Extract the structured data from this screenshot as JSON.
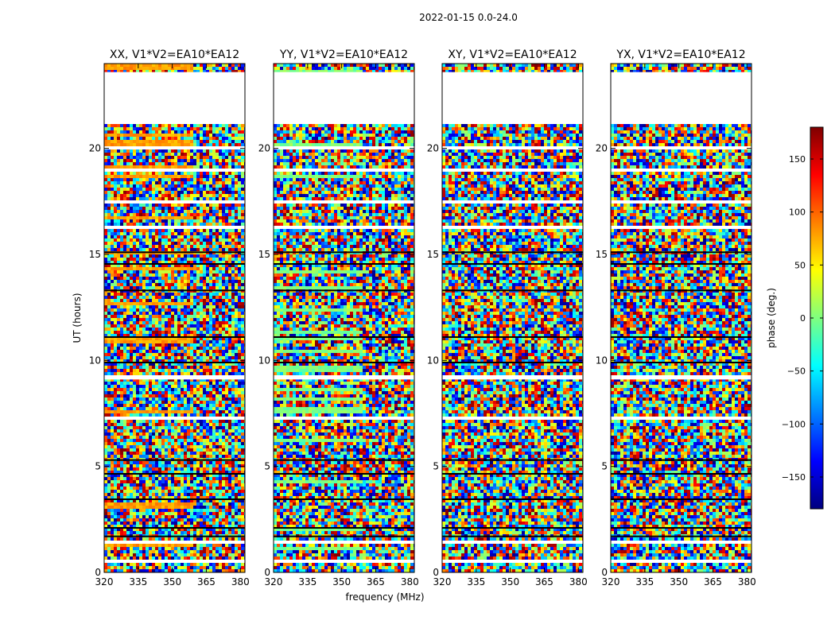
{
  "figure": {
    "suptitle": "2022-01-15 0.0-24.0"
  },
  "chart_data": {
    "type": "heatmap",
    "title": "2022-01-15 0.0-24.0",
    "xlabel": "frequency (MHz)",
    "ylabel": "UT (hours)",
    "xlim": [
      320,
      382
    ],
    "ylim": [
      0,
      24
    ],
    "x_ticks": [
      320,
      335,
      350,
      365,
      380
    ],
    "y_ticks": [
      0,
      5,
      10,
      15,
      20
    ],
    "panels": [
      {
        "id": "xx",
        "title": "XX, V1*V2=EA10*EA12",
        "show_ylabel": true,
        "show_xlabel": false
      },
      {
        "id": "yy",
        "title": "YY, V1*V2=EA10*EA12",
        "show_ylabel": false,
        "show_xlabel": true
      },
      {
        "id": "xy",
        "title": "XY, V1*V2=EA10*EA12",
        "show_ylabel": false,
        "show_xlabel": false
      },
      {
        "id": "yx",
        "title": "YX, V1*V2=EA10*EA12",
        "show_ylabel": false,
        "show_xlabel": false
      }
    ],
    "colorbar": {
      "label": "phase (deg.)",
      "range": [
        -180,
        180
      ],
      "ticks": [
        -150,
        -100,
        -50,
        0,
        50,
        100,
        150
      ],
      "colormap": "jet"
    },
    "data_gaps_hours": [
      [
        21.2,
        23.6
      ],
      [
        20.05,
        19.95
      ],
      [
        19.05,
        18.95
      ],
      [
        17.55,
        17.45
      ],
      [
        16.3,
        16.2
      ],
      [
        9.3,
        9.1
      ],
      [
        7.35,
        7.2
      ],
      [
        1.5,
        1.35
      ],
      [
        0.55,
        0.45
      ]
    ],
    "dark_lines_hours": [
      15.1,
      14.55,
      13.3,
      11.1,
      9.9,
      5.3,
      4.65,
      3.45,
      2.1,
      1.7
    ]
  }
}
